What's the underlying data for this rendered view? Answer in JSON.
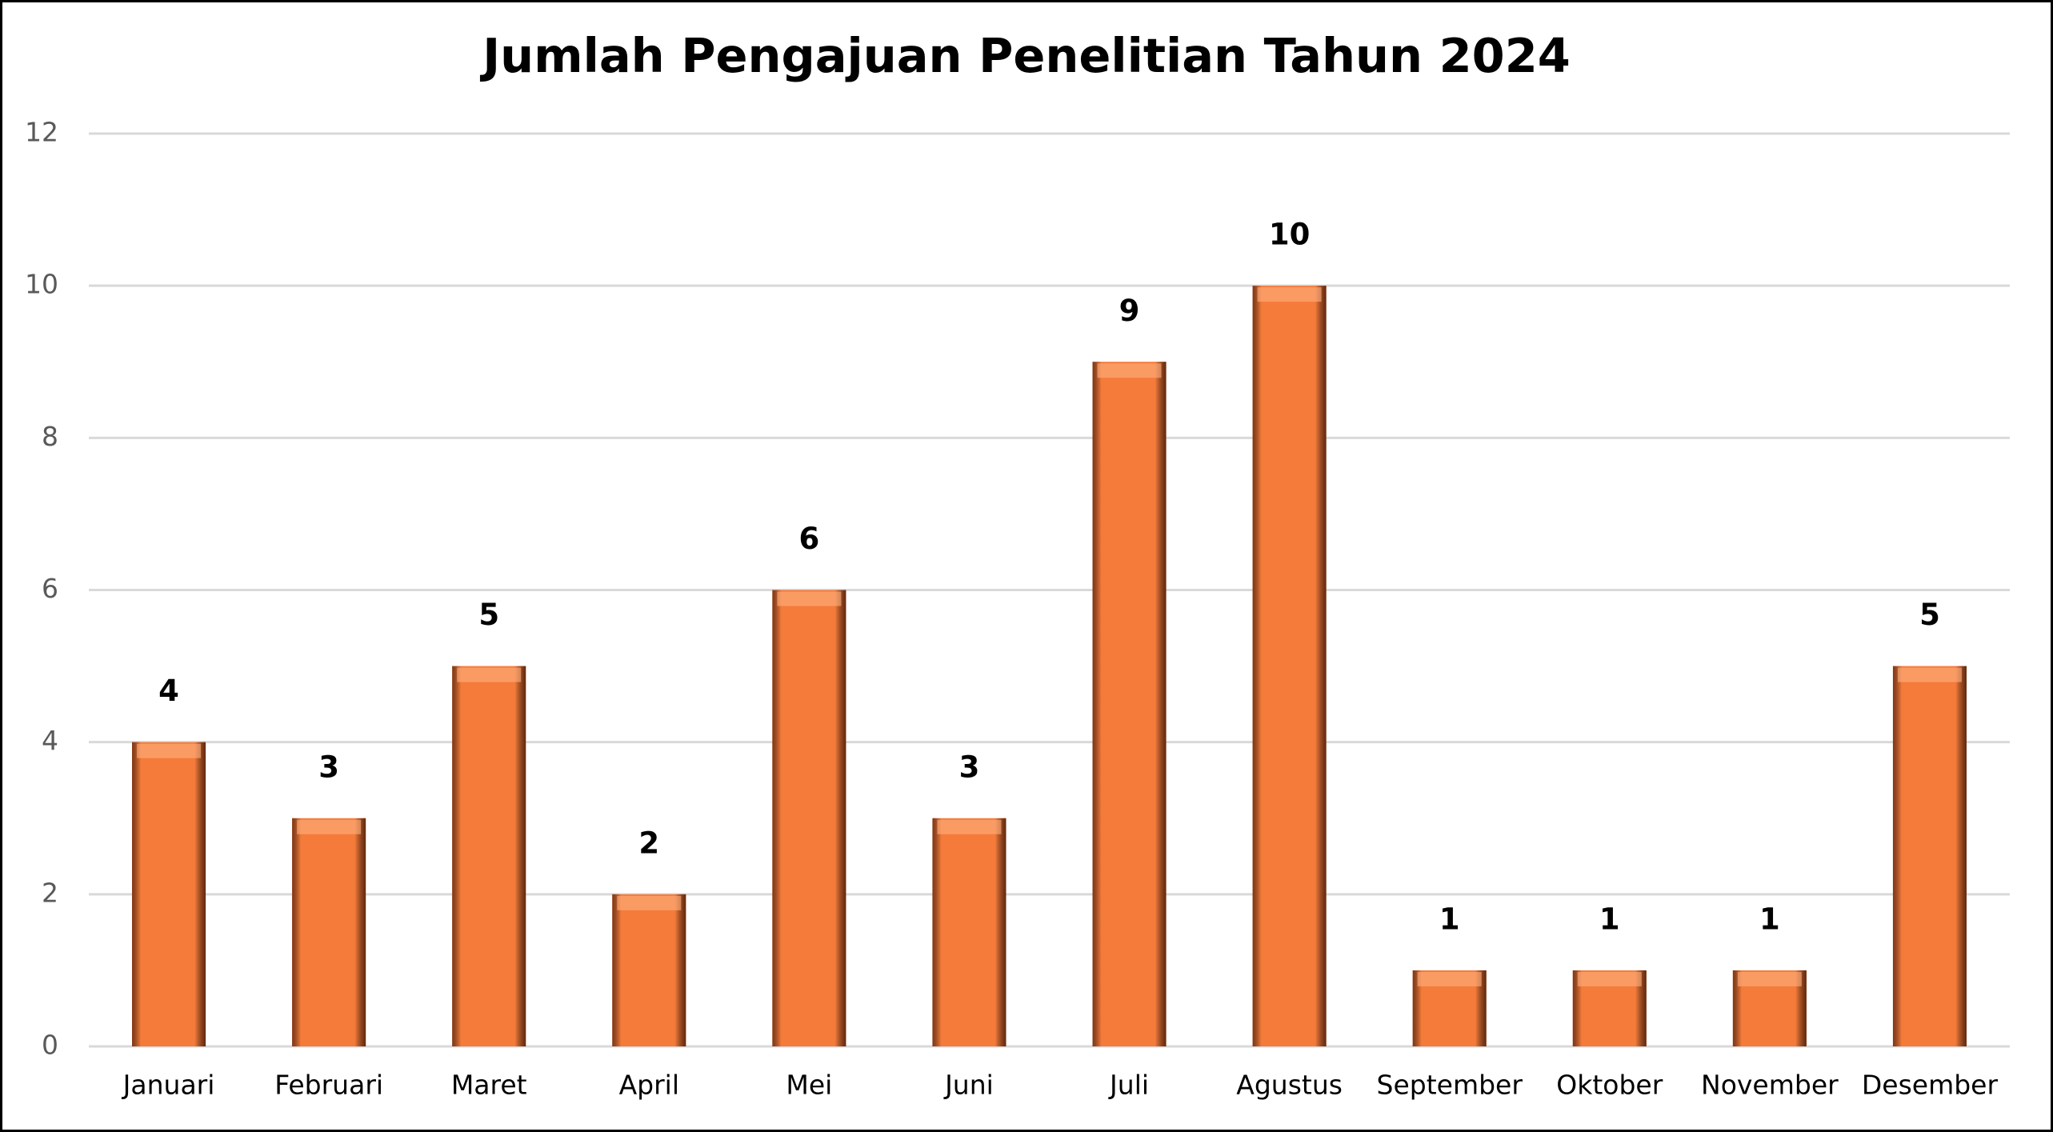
{
  "chart_data": {
    "type": "bar",
    "title": "Jumlah Pengajuan Penelitian Tahun 2024",
    "categories": [
      "Januari",
      "Februari",
      "Maret",
      "April",
      "Mei",
      "Juni",
      "Juli",
      "Agustus",
      "September",
      "Oktober",
      "November",
      "Desember"
    ],
    "values": [
      4,
      3,
      5,
      2,
      6,
      3,
      9,
      10,
      1,
      1,
      1,
      5
    ],
    "color": "#f47b3a",
    "ylim": [
      0,
      12
    ],
    "yticks": [
      0,
      2,
      4,
      6,
      8,
      10,
      12
    ],
    "grid": true
  }
}
